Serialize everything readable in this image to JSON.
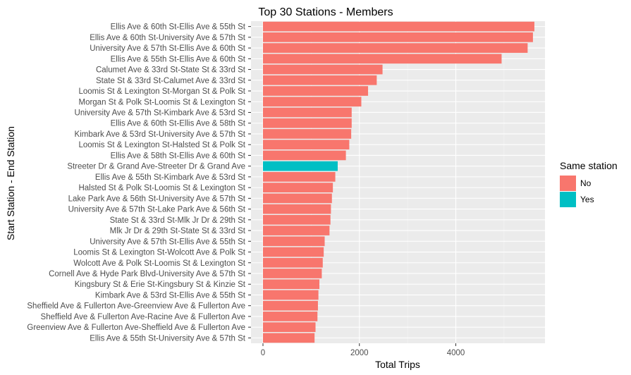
{
  "chart_data": {
    "type": "bar",
    "orientation": "horizontal",
    "title": "Top 30 Stations - Members",
    "xlabel": "Total Trips",
    "ylabel": "Start Station - End Station",
    "xlim": [
      0,
      5850
    ],
    "xticks": [
      0,
      2000,
      4000
    ],
    "grid": true,
    "legend": {
      "title": "Same station",
      "position": "right",
      "entries": [
        {
          "label": "No",
          "color": "#F8766D"
        },
        {
          "label": "Yes",
          "color": "#00BFC4"
        }
      ]
    },
    "categories": [
      "Ellis Ave & 60th St-Ellis Ave & 55th St",
      "Ellis Ave & 60th St-University Ave & 57th St",
      "University Ave & 57th St-Ellis Ave & 60th St",
      "Ellis Ave & 55th St-Ellis Ave & 60th St",
      "Calumet Ave & 33rd St-State St & 33rd St",
      "State St & 33rd St-Calumet Ave & 33rd St",
      "Loomis St & Lexington St-Morgan St & Polk St",
      "Morgan St & Polk St-Loomis St & Lexington St",
      "University Ave & 57th St-Kimbark Ave & 53rd St",
      "Ellis Ave & 60th St-Ellis Ave & 58th St",
      "Kimbark Ave & 53rd St-University Ave & 57th St",
      "Loomis St & Lexington St-Halsted St & Polk St",
      "Ellis Ave & 58th St-Ellis Ave & 60th St",
      "Streeter Dr & Grand Ave-Streeter Dr & Grand Ave",
      "Ellis Ave & 55th St-Kimbark Ave & 53rd St",
      "Halsted St & Polk St-Loomis St & Lexington St",
      "Lake Park Ave & 56th St-University Ave & 57th St",
      "University Ave & 57th St-Lake Park Ave & 56th St",
      "State St & 33rd St-Mlk Jr Dr & 29th St",
      "Mlk Jr Dr & 29th St-State St & 33rd St",
      "University Ave & 57th St-Ellis Ave & 55th St",
      "Loomis St & Lexington St-Wolcott Ave & Polk St",
      "Wolcott Ave & Polk St-Loomis St & Lexington St",
      "Cornell Ave & Hyde Park Blvd-University Ave & 57th St",
      "Kingsbury St & Erie St-Kingsbury St & Kinzie St",
      "Kimbark Ave & 53rd St-Ellis Ave & 55th St",
      "Sheffield Ave & Fullerton Ave-Greenview Ave & Fullerton Ave",
      "Sheffield Ave & Fullerton Ave-Racine Ave & Fullerton Ave",
      "Greenview Ave & Fullerton Ave-Sheffield Ave & Fullerton Ave",
      "Ellis Ave & 55th St-University Ave & 57th St"
    ],
    "values": [
      5630,
      5600,
      5490,
      4950,
      2480,
      2360,
      2180,
      2040,
      1840,
      1840,
      1830,
      1790,
      1720,
      1550,
      1500,
      1450,
      1430,
      1410,
      1400,
      1380,
      1280,
      1260,
      1240,
      1220,
      1170,
      1150,
      1140,
      1130,
      1090,
      1070
    ],
    "same_station": [
      "No",
      "No",
      "No",
      "No",
      "No",
      "No",
      "No",
      "No",
      "No",
      "No",
      "No",
      "No",
      "No",
      "Yes",
      "No",
      "No",
      "No",
      "No",
      "No",
      "No",
      "No",
      "No",
      "No",
      "No",
      "No",
      "No",
      "No",
      "No",
      "No",
      "No"
    ]
  }
}
